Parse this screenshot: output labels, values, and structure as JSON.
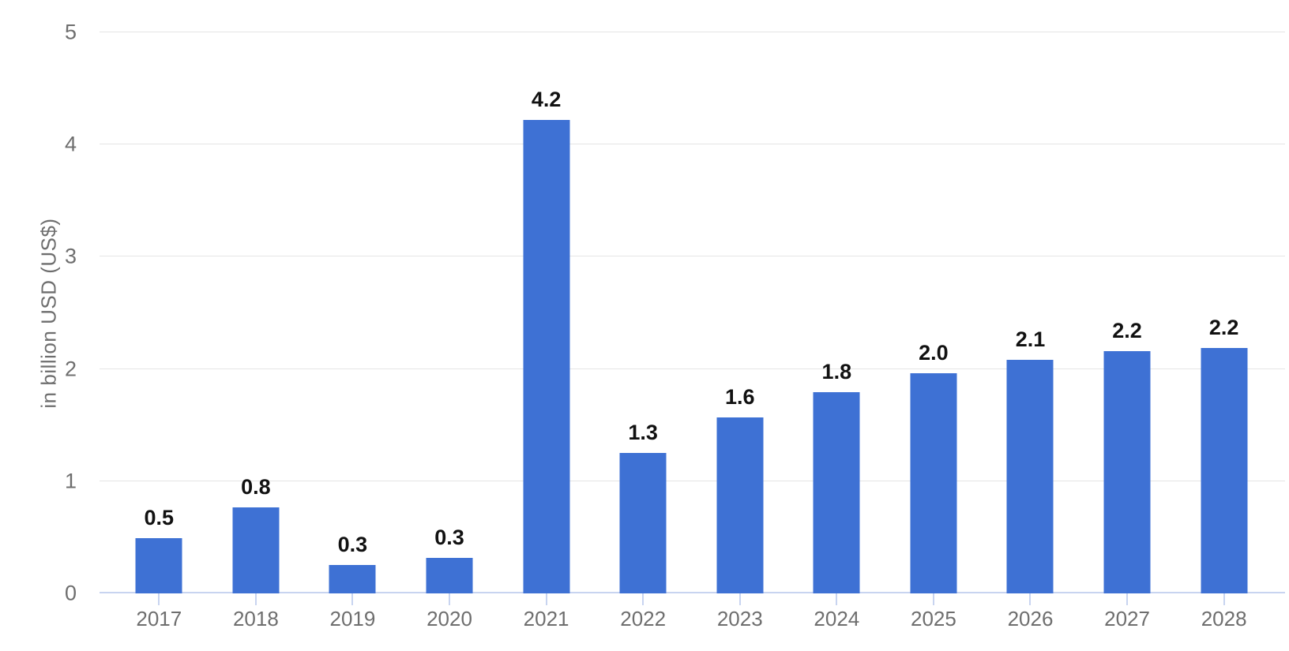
{
  "chart_data": {
    "type": "bar",
    "categories": [
      "2017",
      "2018",
      "2019",
      "2020",
      "2021",
      "2022",
      "2023",
      "2024",
      "2025",
      "2026",
      "2027",
      "2028"
    ],
    "values": [
      0.5,
      0.8,
      0.3,
      0.3,
      4.2,
      1.3,
      1.6,
      1.8,
      2.0,
      2.1,
      2.2,
      2.2
    ],
    "value_labels": [
      "0.5",
      "0.8",
      "0.3",
      "0.3",
      "4.2",
      "1.3",
      "1.6",
      "1.8",
      "2.0",
      "2.1",
      "2.2",
      "2.2"
    ],
    "values_precise": [
      0.49,
      0.77,
      0.25,
      0.32,
      4.22,
      1.25,
      1.57,
      1.79,
      1.96,
      2.08,
      2.16,
      2.19
    ],
    "ylabel": "in billion USD (US$)",
    "xlabel": "",
    "ylim": [
      0,
      5
    ],
    "y_ticks": [
      0,
      1,
      2,
      3,
      4,
      5
    ],
    "grid": "horizontal-only",
    "legend": "none",
    "colors": {
      "bar": "#3e71d4",
      "gridline": "#e5e5e5",
      "zero_line": "#c8d4f0",
      "tick_mark": "#c8d4f0",
      "axis_text": "#6e6e6e",
      "value_label_text": "#111111",
      "background": "#ffffff"
    }
  }
}
